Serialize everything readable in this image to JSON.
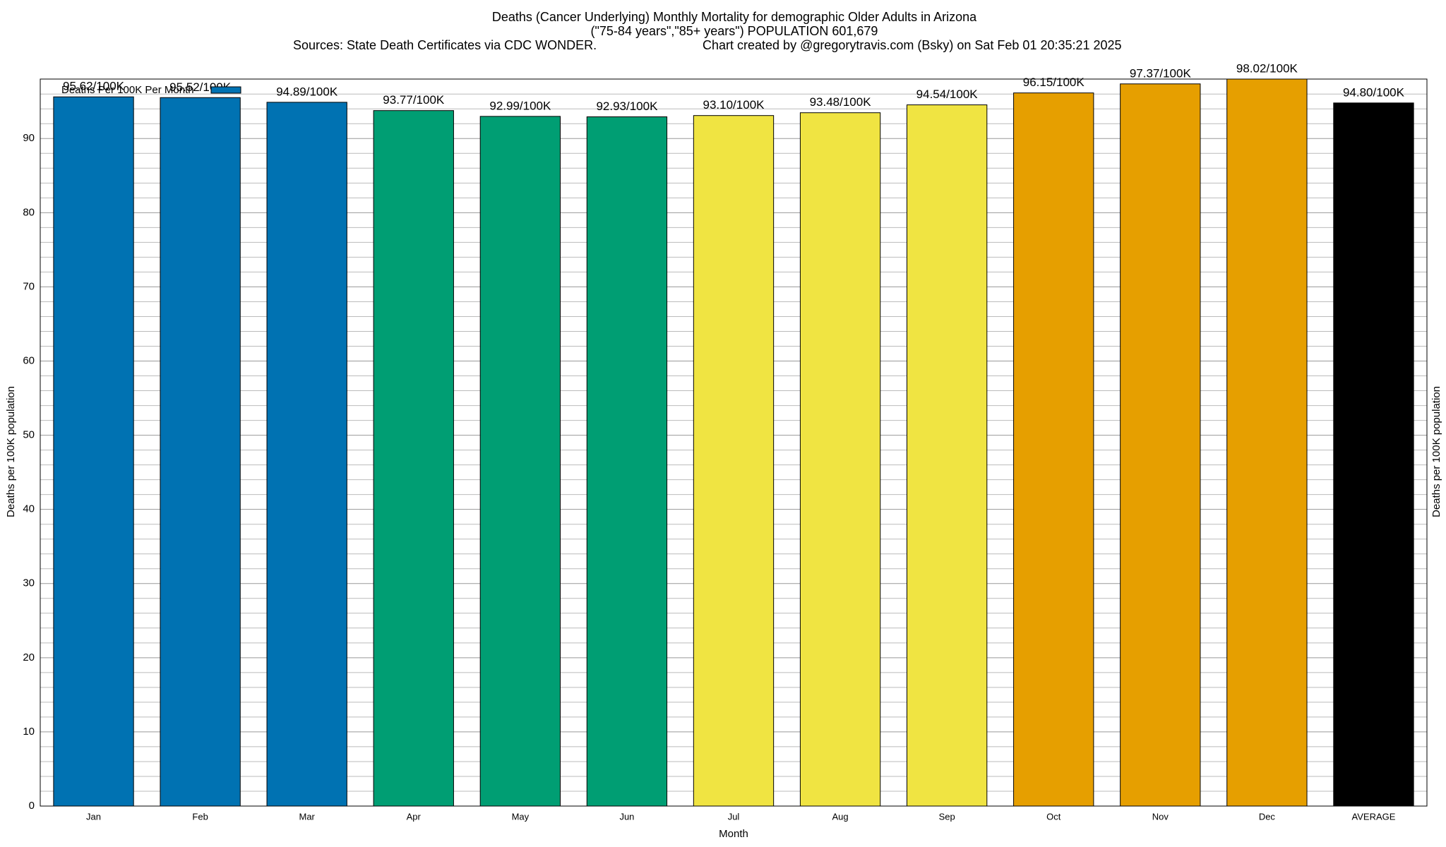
{
  "chart_data": {
    "type": "bar",
    "title": "Deaths (Cancer Underlying) Monthly Mortality for demographic Older Adults in Arizona",
    "subtitle": "(\"75-84 years\",\"85+ years\") POPULATION 601,679",
    "sources": "Sources: State Death Certificates via CDC WONDER.",
    "credit": "Chart created by @gregorytravis.com (Bsky) on Sat Feb 01 20:35:21 2025",
    "x_label": "Month",
    "y_label": "Deaths per 100K population",
    "y2_label": "Deaths per 100K population",
    "categories": [
      "Jan",
      "Feb",
      "Mar",
      "Apr",
      "May",
      "Jun",
      "Jul",
      "Aug",
      "Sep",
      "Oct",
      "Nov",
      "Dec",
      "AVERAGE"
    ],
    "series": [
      {
        "name": "Deaths Per 100K Per Month",
        "color": "#0072b2",
        "values": [
          95.62,
          95.52,
          94.89,
          93.77,
          92.99,
          92.93,
          93.1,
          93.48,
          94.54,
          96.15,
          97.37,
          98.02,
          94.8
        ],
        "value_labels": [
          "95.62/100K",
          "95.52/100K",
          "94.89/100K",
          "93.77/100K",
          "92.99/100K",
          "92.93/100K",
          "93.10/100K",
          "93.48/100K",
          "94.54/100K",
          "96.15/100K",
          "97.37/100K",
          "98.02/100K",
          "94.80/100K"
        ],
        "colors": [
          "#0072b2",
          "#0072b2",
          "#0072b2",
          "#009e73",
          "#009e73",
          "#009e73",
          "#f0e442",
          "#f0e442",
          "#f0e442",
          "#e69f00",
          "#e69f00",
          "#e69f00",
          "#000000"
        ]
      }
    ],
    "ylim": [
      0,
      98.02
    ],
    "yticks": [
      0,
      10,
      20,
      30,
      40,
      50,
      60,
      70,
      80,
      90
    ],
    "minor_yticks": [
      2,
      4,
      6,
      8,
      12,
      14,
      16,
      18,
      22,
      24,
      26,
      28,
      32,
      34,
      36,
      38,
      42,
      44,
      46,
      48,
      52,
      54,
      56,
      58,
      62,
      64,
      66,
      68,
      72,
      74,
      76,
      78,
      82,
      84,
      86,
      88,
      92,
      94,
      96
    ],
    "grid": true,
    "legend": "top-left"
  }
}
